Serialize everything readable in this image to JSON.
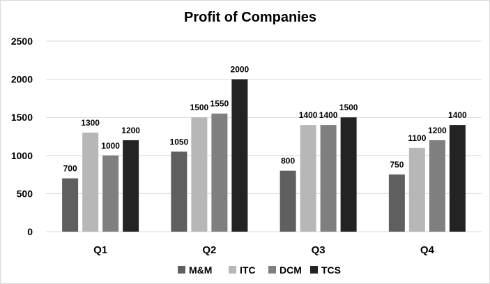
{
  "chart_data": {
    "type": "bar",
    "title": "Profit of Companies",
    "xlabel": "",
    "ylabel": "",
    "categories": [
      "Q1",
      "Q2",
      "Q3",
      "Q4"
    ],
    "ylim": [
      0,
      2500
    ],
    "yticks": [
      0,
      500,
      1000,
      1500,
      2000,
      2500
    ],
    "grid": true,
    "legend_position": "bottom",
    "series": [
      {
        "name": "M&M",
        "color": "#5f5f5f",
        "values": [
          700,
          1050,
          800,
          750
        ]
      },
      {
        "name": "ITC",
        "color": "#b7b7b7",
        "values": [
          1300,
          1500,
          1400,
          1100
        ]
      },
      {
        "name": "DCM",
        "color": "#7f7f7f",
        "values": [
          1000,
          1550,
          1400,
          1200
        ]
      },
      {
        "name": "TCS",
        "color": "#232323",
        "values": [
          1200,
          2000,
          1500,
          1400
        ]
      }
    ]
  }
}
